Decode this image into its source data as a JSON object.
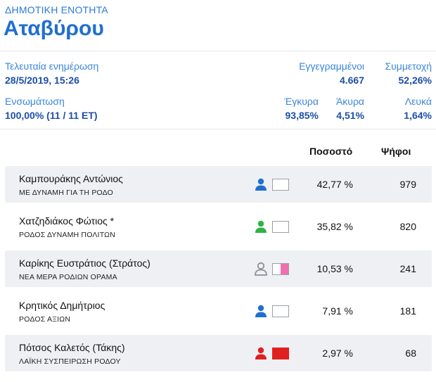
{
  "header": {
    "subtitle": "ΔΗΜΟΤΙΚΗ ΕΝΟΤΗΤΑ",
    "title": "Αταβύρου"
  },
  "stats": {
    "last_update_label": "Τελευταία ενημέρωση",
    "last_update_value": "28/5/2019, 15:26",
    "registered_label": "Εγγεγραμμένοι",
    "registered_value": "4.667",
    "turnout_label": "Συμμετοχή",
    "turnout_value": "52,26%",
    "integration_label": "Ενσωμάτωση",
    "integration_value": "100,00% (11 / 11 ΕΤ)",
    "valid_label": "Έγκυρα",
    "valid_value": "93,85%",
    "invalid_label": "Άκυρα",
    "invalid_value": "4,51%",
    "blank_label": "Λευκά",
    "blank_value": "1,64%"
  },
  "table": {
    "headers": {
      "percent": "Ποσοστό",
      "votes": "Ψήφοι"
    },
    "rows": [
      {
        "name": "Καμπουράκης Αντώνιος",
        "party": "ΜΕ ΔΥΝΑΜΗ ΓΙΑ ΤΗ ΡΟΔΟ",
        "percent": "42,77 %",
        "votes": "979",
        "icon_color": "#1f6fd1",
        "icon_style": "filled",
        "swatch": [
          "#ffffff"
        ]
      },
      {
        "name": "Χατζηδιάκος Φώτιος *",
        "party": "ΡΟΔΟΣ ΔΥΝΑΜΗ ΠΟΛΙΤΩΝ",
        "percent": "35,82 %",
        "votes": "820",
        "icon_color": "#2fb344",
        "icon_style": "filled",
        "swatch": [
          "#ffffff"
        ]
      },
      {
        "name": "Καρίκης Ευστράτιος (Στράτος)",
        "party": "ΝΕΑ ΜΕΡΑ ΡΟΔΙΩΝ ΟΡΑΜΑ",
        "percent": "10,53 %",
        "votes": "241",
        "icon_color": "#8a8f96",
        "icon_style": "outline",
        "swatch": [
          "#ffffff",
          "#f06fb0"
        ]
      },
      {
        "name": "Κρητικός Δημήτριος",
        "party": "ΡΟΔΟΣ ΑΞΙΩΝ",
        "percent": "7,91 %",
        "votes": "181",
        "icon_color": "#1f6fd1",
        "icon_style": "filled",
        "swatch": [
          "#ffffff"
        ]
      },
      {
        "name": "Πότσος Καλετός (Τάκης)",
        "party": "ΛΑΪΚΗ ΣΥΣΠΕΙΡΩΣΗ ΡΟΔΟΥ",
        "percent": "2,97 %",
        "votes": "68",
        "icon_color": "#e0201e",
        "icon_style": "filled",
        "swatch": [
          "#e0201e"
        ]
      }
    ]
  }
}
